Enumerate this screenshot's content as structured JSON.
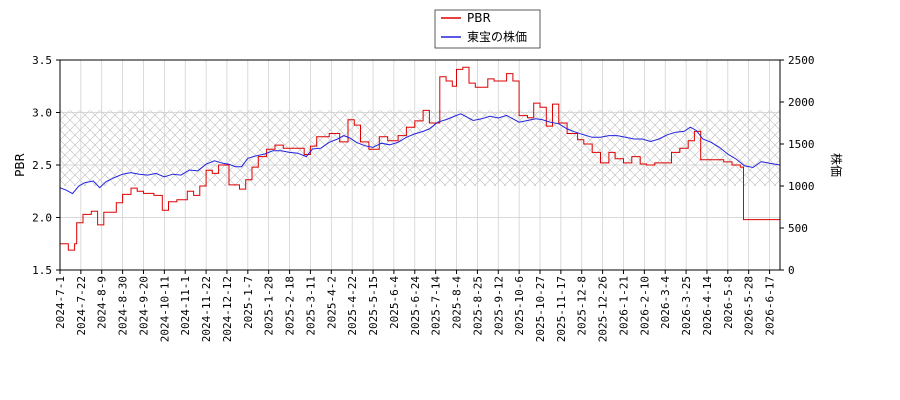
{
  "chart_data": {
    "type": "line",
    "legend": {
      "placement": "top-center",
      "entries": [
        {
          "name": "PBR",
          "color": "#dd0000"
        },
        {
          "name": "東宝の株価",
          "color": "#2222dd"
        }
      ]
    },
    "ylabel_left": "PBR",
    "ylabel_right": "株価",
    "ylim_left": [
      1.5,
      3.5
    ],
    "ylim_right": [
      0,
      2500
    ],
    "yticks_left": [
      "1.5",
      "2.0",
      "2.5",
      "3.0",
      "3.5"
    ],
    "yticks_right": [
      "0",
      "500",
      "1000",
      "1500",
      "2000",
      "2500"
    ],
    "grid": true,
    "shaded_band_right": [
      1000,
      1900
    ],
    "x_ticks": [
      "2024-7-1",
      "2024-7-22",
      "2024-8-9",
      "2024-8-30",
      "2024-9-20",
      "2024-10-11",
      "2024-11-1",
      "2024-11-22",
      "2024-12-12",
      "2025-1-7",
      "2025-1-28",
      "2025-2-18",
      "2025-3-11",
      "2025-4-2",
      "2025-4-22",
      "2025-5-15",
      "2025-6-4",
      "2025-6-24",
      "2025-7-14",
      "2025-8-4",
      "2025-8-25",
      "2025-9-12",
      "2025-10-6",
      "2025-10-27",
      "2025-11-17",
      "2025-12-8",
      "2025-12-26",
      "2026-1-21",
      "2026-2-10",
      "2026-3-4",
      "2026-3-25",
      "2026-4-14",
      "2026-5-8",
      "2026-5-28",
      "2026-6-17"
    ],
    "series": [
      {
        "name": "PBR",
        "axis": "left",
        "color": "#dd0000",
        "step": true,
        "points": [
          [
            0,
            1.75
          ],
          [
            0.4,
            1.69
          ],
          [
            0.7,
            1.75
          ],
          [
            0.8,
            1.95
          ],
          [
            1.1,
            2.03
          ],
          [
            1.5,
            2.06
          ],
          [
            1.8,
            1.93
          ],
          [
            2.1,
            2.05
          ],
          [
            2.7,
            2.14
          ],
          [
            3.0,
            2.22
          ],
          [
            3.4,
            2.28
          ],
          [
            3.7,
            2.25
          ],
          [
            4.0,
            2.23
          ],
          [
            4.5,
            2.21
          ],
          [
            4.9,
            2.07
          ],
          [
            5.2,
            2.15
          ],
          [
            5.6,
            2.17
          ],
          [
            6.1,
            2.25
          ],
          [
            6.4,
            2.21
          ],
          [
            6.7,
            2.3
          ],
          [
            7.0,
            2.45
          ],
          [
            7.3,
            2.42
          ],
          [
            7.6,
            2.5
          ],
          [
            8.1,
            2.31
          ],
          [
            8.6,
            2.27
          ],
          [
            8.9,
            2.36
          ],
          [
            9.2,
            2.48
          ],
          [
            9.5,
            2.58
          ],
          [
            9.9,
            2.65
          ],
          [
            10.3,
            2.69
          ],
          [
            10.7,
            2.66
          ],
          [
            11.2,
            2.66
          ],
          [
            11.7,
            2.6
          ],
          [
            12.0,
            2.68
          ],
          [
            12.3,
            2.77
          ],
          [
            12.9,
            2.8
          ],
          [
            13.4,
            2.72
          ],
          [
            13.8,
            2.93
          ],
          [
            14.1,
            2.88
          ],
          [
            14.4,
            2.72
          ],
          [
            14.8,
            2.65
          ],
          [
            15.3,
            2.77
          ],
          [
            15.7,
            2.73
          ],
          [
            16.2,
            2.78
          ],
          [
            16.6,
            2.86
          ],
          [
            17.0,
            2.92
          ],
          [
            17.4,
            3.02
          ],
          [
            17.7,
            2.9
          ],
          [
            18.2,
            3.34
          ],
          [
            18.5,
            3.3
          ],
          [
            18.8,
            3.25
          ],
          [
            19.0,
            3.41
          ],
          [
            19.3,
            3.43
          ],
          [
            19.6,
            3.28
          ],
          [
            19.9,
            3.24
          ],
          [
            20.5,
            3.32
          ],
          [
            20.8,
            3.3
          ],
          [
            21.4,
            3.37
          ],
          [
            21.7,
            3.3
          ],
          [
            22.0,
            2.97
          ],
          [
            22.4,
            2.95
          ],
          [
            22.7,
            3.09
          ],
          [
            23.0,
            3.05
          ],
          [
            23.3,
            2.87
          ],
          [
            23.6,
            3.08
          ],
          [
            23.9,
            2.9
          ],
          [
            24.3,
            2.8
          ],
          [
            24.8,
            2.74
          ],
          [
            25.1,
            2.7
          ],
          [
            25.5,
            2.62
          ],
          [
            25.9,
            2.52
          ],
          [
            26.3,
            2.62
          ],
          [
            26.6,
            2.56
          ],
          [
            27.0,
            2.52
          ],
          [
            27.4,
            2.58
          ],
          [
            27.8,
            2.51
          ],
          [
            28.1,
            2.5
          ],
          [
            28.5,
            2.52
          ],
          [
            29.0,
            2.52
          ],
          [
            29.3,
            2.62
          ],
          [
            29.7,
            2.66
          ],
          [
            30.1,
            2.73
          ],
          [
            30.4,
            2.82
          ],
          [
            30.7,
            2.55
          ],
          [
            31.3,
            2.55
          ],
          [
            31.8,
            2.53
          ],
          [
            32.2,
            2.5
          ],
          [
            32.6,
            2.48
          ],
          [
            32.75,
            1.98
          ],
          [
            34.5,
            1.98
          ]
        ]
      },
      {
        "name": "東宝の株価",
        "axis": "right",
        "color": "#2222dd",
        "step": false,
        "points": [
          [
            0,
            980
          ],
          [
            0.3,
            950
          ],
          [
            0.6,
            910
          ],
          [
            0.9,
            1000
          ],
          [
            1.2,
            1040
          ],
          [
            1.6,
            1060
          ],
          [
            1.9,
            980
          ],
          [
            2.2,
            1050
          ],
          [
            2.6,
            1100
          ],
          [
            3.0,
            1140
          ],
          [
            3.4,
            1160
          ],
          [
            3.8,
            1140
          ],
          [
            4.2,
            1130
          ],
          [
            4.6,
            1150
          ],
          [
            5.0,
            1110
          ],
          [
            5.4,
            1140
          ],
          [
            5.8,
            1130
          ],
          [
            6.2,
            1190
          ],
          [
            6.6,
            1180
          ],
          [
            7.0,
            1260
          ],
          [
            7.4,
            1300
          ],
          [
            7.8,
            1270
          ],
          [
            8.1,
            1260
          ],
          [
            8.4,
            1230
          ],
          [
            8.7,
            1230
          ],
          [
            9.0,
            1330
          ],
          [
            9.4,
            1360
          ],
          [
            9.8,
            1380
          ],
          [
            10.2,
            1420
          ],
          [
            10.6,
            1420
          ],
          [
            11.0,
            1400
          ],
          [
            11.4,
            1390
          ],
          [
            11.8,
            1350
          ],
          [
            12.1,
            1440
          ],
          [
            12.5,
            1450
          ],
          [
            12.9,
            1520
          ],
          [
            13.3,
            1560
          ],
          [
            13.6,
            1600
          ],
          [
            13.9,
            1570
          ],
          [
            14.2,
            1520
          ],
          [
            14.6,
            1480
          ],
          [
            15.0,
            1460
          ],
          [
            15.4,
            1510
          ],
          [
            15.8,
            1490
          ],
          [
            16.2,
            1520
          ],
          [
            16.6,
            1580
          ],
          [
            17.0,
            1620
          ],
          [
            17.4,
            1650
          ],
          [
            17.7,
            1680
          ],
          [
            18.1,
            1760
          ],
          [
            18.5,
            1790
          ],
          [
            18.8,
            1820
          ],
          [
            19.2,
            1860
          ],
          [
            19.5,
            1820
          ],
          [
            19.8,
            1780
          ],
          [
            20.2,
            1800
          ],
          [
            20.6,
            1830
          ],
          [
            21.0,
            1810
          ],
          [
            21.4,
            1840
          ],
          [
            21.7,
            1800
          ],
          [
            22.0,
            1760
          ],
          [
            22.4,
            1780
          ],
          [
            22.8,
            1800
          ],
          [
            23.1,
            1790
          ],
          [
            23.5,
            1760
          ],
          [
            23.9,
            1740
          ],
          [
            24.3,
            1680
          ],
          [
            24.7,
            1640
          ],
          [
            25.1,
            1610
          ],
          [
            25.5,
            1580
          ],
          [
            25.9,
            1580
          ],
          [
            26.3,
            1600
          ],
          [
            26.7,
            1600
          ],
          [
            27.1,
            1580
          ],
          [
            27.5,
            1560
          ],
          [
            27.9,
            1560
          ],
          [
            28.3,
            1530
          ],
          [
            28.7,
            1560
          ],
          [
            29.1,
            1610
          ],
          [
            29.5,
            1640
          ],
          [
            29.9,
            1650
          ],
          [
            30.2,
            1700
          ],
          [
            30.5,
            1660
          ],
          [
            30.8,
            1560
          ],
          [
            31.2,
            1520
          ],
          [
            31.6,
            1460
          ],
          [
            32.0,
            1380
          ],
          [
            32.4,
            1320
          ],
          [
            32.8,
            1240
          ],
          [
            33.2,
            1220
          ],
          [
            33.6,
            1290
          ],
          [
            34.0,
            1270
          ],
          [
            34.5,
            1250
          ]
        ]
      }
    ]
  }
}
